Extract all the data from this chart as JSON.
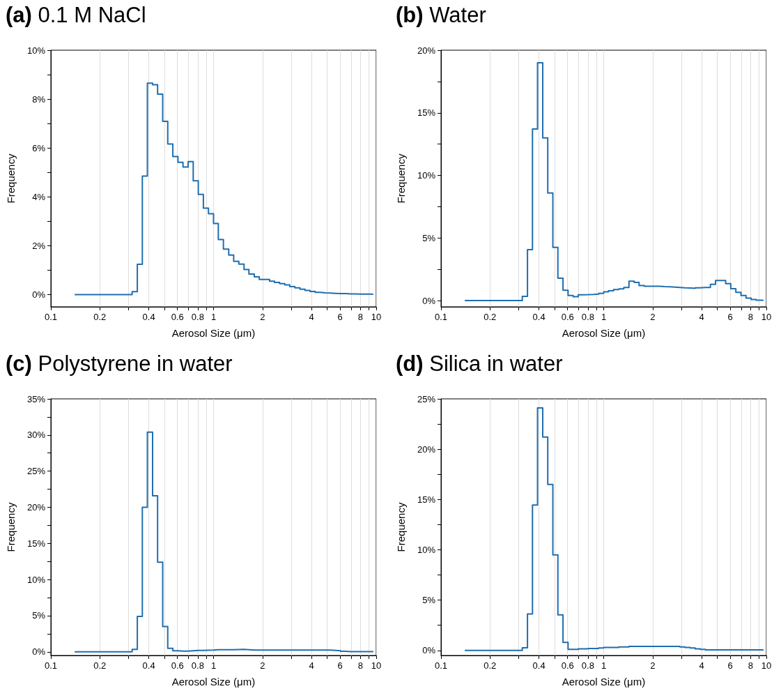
{
  "chart_data": [
    {
      "type": "step",
      "title": "(a) 0.1 M NaCl",
      "xlabel": "Aerosol Size (μm)",
      "ylabel": "Frequency",
      "log": "x",
      "grid": "x",
      "line_style": "solid",
      "marker": "none",
      "x": [
        0.14,
        0.316,
        0.34,
        0.365,
        0.392,
        0.422,
        0.453,
        0.487,
        0.523,
        0.562,
        0.604,
        0.649,
        0.698,
        0.75,
        0.806,
        0.866,
        0.931,
        1.0,
        1.07,
        1.15,
        1.24,
        1.33,
        1.43,
        1.54,
        1.65,
        1.78,
        1.91,
        2.05,
        2.21,
        2.37,
        2.55,
        2.74,
        2.94,
        3.16,
        3.4,
        3.65,
        3.92,
        4.22,
        4.53,
        4.87,
        5.23,
        5.62,
        6.04,
        6.49,
        6.98,
        7.5,
        8.06,
        8.66,
        9.31,
        9.6
      ],
      "series": [
        {
          "color": "#1f6eb0",
          "values": [
            0,
            0.12,
            1.24,
            4.85,
            8.65,
            8.59,
            8.2,
            7.09,
            6.16,
            5.65,
            5.41,
            5.22,
            5.44,
            4.66,
            4.1,
            3.54,
            3.31,
            2.91,
            2.25,
            1.86,
            1.62,
            1.36,
            1.25,
            1.03,
            0.84,
            0.73,
            0.62,
            0.62,
            0.55,
            0.5,
            0.45,
            0.4,
            0.33,
            0.28,
            0.22,
            0.17,
            0.13,
            0.09,
            0.07,
            0.06,
            0.05,
            0.04,
            0.04,
            0.03,
            0.03,
            0.02,
            0.02,
            0.02,
            0.01,
            0.01
          ]
        }
      ],
      "xlim": [
        0.1,
        10
      ],
      "xticks": [
        0.1,
        0.2,
        {
          "value": 0.3,
          "label": null
        },
        0.4,
        {
          "value": 0.5,
          "label": null
        },
        0.6,
        {
          "value": 0.7,
          "label": null
        },
        0.8,
        {
          "value": 0.9,
          "label": null
        },
        1,
        2,
        {
          "value": 3,
          "label": null
        },
        4,
        {
          "value": 5,
          "label": null
        },
        6,
        {
          "value": 7,
          "label": null
        },
        8,
        {
          "value": 9,
          "label": null
        },
        10
      ],
      "ylim": [
        -0.5,
        10
      ],
      "yticks": [
        {
          "value": 0,
          "label": "0%"
        },
        {
          "value": 1,
          "label": null
        },
        {
          "value": 2,
          "label": "2%"
        },
        {
          "value": 3,
          "label": null
        },
        {
          "value": 4,
          "label": "4%"
        },
        {
          "value": 5,
          "label": null
        },
        {
          "value": 6,
          "label": "6%"
        },
        {
          "value": 7,
          "label": null
        },
        {
          "value": 8,
          "label": "8%"
        },
        {
          "value": 9,
          "label": null
        },
        {
          "value": 10,
          "label": "10%"
        }
      ]
    },
    {
      "type": "step",
      "title": "(b) Water",
      "xlabel": "Aerosol Size (μm)",
      "ylabel": "Frequency",
      "log": "x",
      "grid": "x",
      "line_style": "solid",
      "marker": "none",
      "x": [
        0.14,
        0.316,
        0.34,
        0.365,
        0.392,
        0.422,
        0.453,
        0.487,
        0.523,
        0.562,
        0.604,
        0.649,
        0.698,
        0.75,
        0.806,
        0.866,
        0.931,
        1.0,
        1.07,
        1.15,
        1.24,
        1.33,
        1.43,
        1.54,
        1.65,
        1.78,
        1.91,
        2.05,
        2.21,
        2.37,
        2.55,
        2.74,
        2.94,
        3.16,
        3.4,
        3.65,
        3.92,
        4.22,
        4.53,
        4.87,
        5.23,
        5.62,
        6.04,
        6.49,
        6.98,
        7.5,
        8.06,
        8.66,
        9.31,
        9.6
      ],
      "series": [
        {
          "color": "#1f6eb0",
          "values": [
            0,
            0.33,
            4.07,
            13.7,
            19.0,
            13.0,
            8.6,
            4.25,
            1.79,
            0.82,
            0.4,
            0.31,
            0.46,
            0.47,
            0.49,
            0.52,
            0.57,
            0.7,
            0.78,
            0.88,
            0.93,
            1.05,
            1.55,
            1.45,
            1.2,
            1.15,
            1.15,
            1.15,
            1.12,
            1.1,
            1.08,
            1.05,
            1.02,
            1.0,
            0.98,
            1.02,
            1.05,
            1.05,
            1.3,
            1.6,
            1.6,
            1.35,
            0.95,
            0.65,
            0.4,
            0.2,
            0.08,
            0.03,
            0.02,
            0.02
          ]
        }
      ],
      "xlim": [
        0.1,
        10
      ],
      "xticks": [
        0.1,
        0.2,
        {
          "value": 0.3,
          "label": null
        },
        0.4,
        {
          "value": 0.5,
          "label": null
        },
        0.6,
        {
          "value": 0.7,
          "label": null
        },
        0.8,
        {
          "value": 0.9,
          "label": null
        },
        1,
        2,
        {
          "value": 3,
          "label": null
        },
        4,
        {
          "value": 5,
          "label": null
        },
        6,
        {
          "value": 7,
          "label": null
        },
        8,
        {
          "value": 9,
          "label": null
        },
        10
      ],
      "ylim": [
        -0.5,
        20
      ],
      "yticks": [
        {
          "value": 0,
          "label": "0%"
        },
        {
          "value": 2.5,
          "label": null
        },
        {
          "value": 5,
          "label": "5%"
        },
        {
          "value": 7.5,
          "label": null
        },
        {
          "value": 10,
          "label": "10%"
        },
        {
          "value": 12.5,
          "label": null
        },
        {
          "value": 15,
          "label": "15%"
        },
        {
          "value": 17.5,
          "label": null
        },
        {
          "value": 20,
          "label": "20%"
        }
      ]
    },
    {
      "type": "step",
      "title": "(c) Polystyrene in water",
      "xlabel": "Aerosol Size (μm)",
      "ylabel": "Frequency",
      "log": "x",
      "grid": "x",
      "line_style": "solid",
      "marker": "none",
      "x": [
        0.14,
        0.316,
        0.34,
        0.365,
        0.392,
        0.422,
        0.453,
        0.487,
        0.523,
        0.562,
        0.604,
        0.649,
        0.698,
        0.75,
        0.806,
        0.866,
        0.931,
        1.0,
        1.07,
        1.15,
        1.24,
        1.33,
        1.43,
        1.54,
        1.65,
        1.78,
        1.91,
        2.05,
        2.21,
        2.37,
        2.55,
        2.74,
        2.94,
        3.16,
        3.4,
        3.65,
        3.92,
        4.22,
        4.53,
        4.87,
        5.23,
        5.62,
        6.04,
        6.49,
        6.98,
        7.5,
        8.06,
        8.66,
        9.31,
        9.6
      ],
      "series": [
        {
          "color": "#1f6eb0",
          "values": [
            0,
            0.35,
            4.9,
            20.0,
            30.4,
            21.6,
            12.4,
            3.5,
            0.5,
            0.15,
            0.1,
            0.1,
            0.15,
            0.2,
            0.2,
            0.22,
            0.25,
            0.3,
            0.3,
            0.3,
            0.3,
            0.32,
            0.35,
            0.3,
            0.25,
            0.25,
            0.25,
            0.25,
            0.25,
            0.25,
            0.25,
            0.25,
            0.25,
            0.25,
            0.25,
            0.25,
            0.25,
            0.25,
            0.25,
            0.25,
            0.2,
            0.15,
            0.08,
            0.03,
            0.02,
            0.02,
            0.02,
            0.02,
            0.02,
            0.02
          ]
        }
      ],
      "xlim": [
        0.1,
        10
      ],
      "xticks": [
        0.1,
        0.2,
        {
          "value": 0.3,
          "label": null
        },
        0.4,
        {
          "value": 0.5,
          "label": null
        },
        0.6,
        {
          "value": 0.7,
          "label": null
        },
        0.8,
        {
          "value": 0.9,
          "label": null
        },
        1,
        2,
        {
          "value": 3,
          "label": null
        },
        4,
        {
          "value": 5,
          "label": null
        },
        6,
        {
          "value": 7,
          "label": null
        },
        8,
        {
          "value": 9,
          "label": null
        },
        10
      ],
      "ylim": [
        -0.5,
        35
      ],
      "yticks": [
        {
          "value": 0,
          "label": "0%"
        },
        {
          "value": 2.5,
          "label": null
        },
        {
          "value": 5,
          "label": "5%"
        },
        {
          "value": 7.5,
          "label": null
        },
        {
          "value": 10,
          "label": "10%"
        },
        {
          "value": 12.5,
          "label": null
        },
        {
          "value": 15,
          "label": "15%"
        },
        {
          "value": 17.5,
          "label": null
        },
        {
          "value": 20,
          "label": "20%"
        },
        {
          "value": 22.5,
          "label": null
        },
        {
          "value": 25,
          "label": "25%"
        },
        {
          "value": 27.5,
          "label": null
        },
        {
          "value": 30,
          "label": "30%"
        },
        {
          "value": 32.5,
          "label": null
        },
        {
          "value": 35,
          "label": "35%"
        }
      ]
    },
    {
      "type": "step",
      "title": "(d) Silica in water",
      "xlabel": "Aerosol Size (μm)",
      "ylabel": "Frequency",
      "log": "x",
      "grid": "x",
      "line_style": "solid",
      "marker": "none",
      "x": [
        0.14,
        0.316,
        0.34,
        0.365,
        0.392,
        0.422,
        0.453,
        0.487,
        0.523,
        0.562,
        0.604,
        0.649,
        0.698,
        0.75,
        0.806,
        0.866,
        0.931,
        1.0,
        1.07,
        1.15,
        1.24,
        1.33,
        1.43,
        1.54,
        1.65,
        1.78,
        1.91,
        2.05,
        2.21,
        2.37,
        2.55,
        2.74,
        2.94,
        3.16,
        3.4,
        3.65,
        3.92,
        4.22,
        4.53,
        4.87,
        5.23,
        5.62,
        6.04,
        6.49,
        6.98,
        7.5,
        8.06,
        8.66,
        9.31,
        9.6
      ],
      "series": [
        {
          "color": "#1f6eb0",
          "values": [
            0,
            0.27,
            3.63,
            14.45,
            24.1,
            21.2,
            16.5,
            9.5,
            3.54,
            0.8,
            0.1,
            0.1,
            0.15,
            0.15,
            0.2,
            0.2,
            0.25,
            0.3,
            0.3,
            0.3,
            0.35,
            0.35,
            0.4,
            0.4,
            0.4,
            0.4,
            0.4,
            0.4,
            0.4,
            0.4,
            0.4,
            0.4,
            0.35,
            0.3,
            0.25,
            0.15,
            0.1,
            0.05,
            0.05,
            0.05,
            0.05,
            0.05,
            0.05,
            0.05,
            0.05,
            0.05,
            0.05,
            0.05,
            0.05,
            0.05
          ]
        }
      ],
      "xlim": [
        0.1,
        10
      ],
      "xticks": [
        0.1,
        0.2,
        {
          "value": 0.3,
          "label": null
        },
        0.4,
        {
          "value": 0.5,
          "label": null
        },
        0.6,
        {
          "value": 0.7,
          "label": null
        },
        0.8,
        {
          "value": 0.9,
          "label": null
        },
        1,
        2,
        {
          "value": 3,
          "label": null
        },
        4,
        {
          "value": 5,
          "label": null
        },
        6,
        {
          "value": 7,
          "label": null
        },
        8,
        {
          "value": 9,
          "label": null
        },
        10
      ],
      "ylim": [
        -0.5,
        25
      ],
      "yticks": [
        {
          "value": 0,
          "label": "0%"
        },
        {
          "value": 2.5,
          "label": null
        },
        {
          "value": 5,
          "label": "5%"
        },
        {
          "value": 7.5,
          "label": null
        },
        {
          "value": 10,
          "label": "10%"
        },
        {
          "value": 12.5,
          "label": null
        },
        {
          "value": 15,
          "label": "15%"
        },
        {
          "value": 17.5,
          "label": null
        },
        {
          "value": 20,
          "label": "20%"
        },
        {
          "value": 22.5,
          "label": null
        },
        {
          "value": 25,
          "label": "25%"
        }
      ]
    }
  ]
}
